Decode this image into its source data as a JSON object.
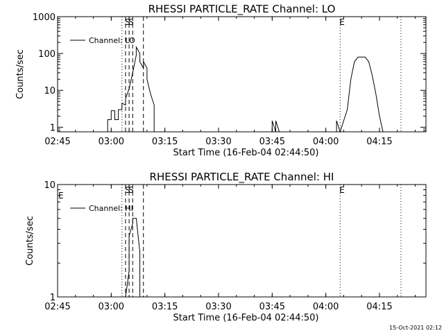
{
  "footer": {
    "timestamp": "15-Oct-2021 02:12"
  },
  "chart_data": [
    {
      "type": "line",
      "title": "RHESSI PARTICLE_RATE Channel: LO",
      "xlabel": "Start Time (16-Feb-04 02:44:50)",
      "ylabel": "Counts/sec",
      "yscale": "log",
      "xlim": [
        "02:45",
        "04:28"
      ],
      "ylim": [
        0.75,
        1000
      ],
      "x_ticks": [
        "02:45",
        "03:00",
        "03:15",
        "03:30",
        "03:45",
        "04:00",
        "04:15"
      ],
      "y_ticks": [
        {
          "value": 1,
          "label": "1"
        },
        {
          "value": 10,
          "label": "10"
        },
        {
          "value": 100,
          "label": "100"
        },
        {
          "value": 1000,
          "label": "1000"
        }
      ],
      "legend": {
        "label": "Channel: LO",
        "position": "top-left"
      },
      "vlines": [
        {
          "x": "03:03",
          "style": "dotted",
          "label": ""
        },
        {
          "x": "03:04",
          "style": "dashed",
          "label": "S"
        },
        {
          "x": "03:05",
          "style": "dashed",
          "label": "S"
        },
        {
          "x": "03:06",
          "style": "dashed",
          "label": ""
        },
        {
          "x": "03:09",
          "style": "dashed",
          "label": ""
        },
        {
          "x": "04:04",
          "style": "dotted",
          "label": "E"
        },
        {
          "x": "04:21",
          "style": "dotted",
          "label": ""
        }
      ],
      "series": [
        {
          "name": "",
          "segments": [
            [
              [
                "02:59",
                0.75
              ],
              [
                "02:59",
                1.6
              ],
              [
                "03:00",
                1.6
              ],
              [
                "03:00",
                2.8
              ],
              [
                "03:01",
                2.8
              ],
              [
                "03:01",
                1.6
              ],
              [
                "03:02",
                1.6
              ],
              [
                "03:02",
                3.0
              ],
              [
                "03:03",
                3.0
              ],
              [
                "03:03",
                4.5
              ],
              [
                "03:04",
                4.0
              ],
              [
                "03:04",
                6.0
              ],
              [
                "03:05",
                11
              ],
              [
                "03:06",
                30
              ],
              [
                "03:07",
                90
              ],
              [
                "03:07",
                150
              ],
              [
                "03:08",
                100
              ],
              [
                "03:08",
                60
              ],
              [
                "03:09",
                40
              ],
              [
                "03:09",
                60
              ],
              [
                "03:10",
                40
              ],
              [
                "03:10",
                20
              ],
              [
                "03:11",
                8
              ],
              [
                "03:12",
                4
              ],
              [
                "03:12",
                0.75
              ]
            ],
            [
              [
                "03:45",
                0.75
              ],
              [
                "03:45",
                1.5
              ],
              [
                "03:46",
                0.75
              ],
              [
                "03:46",
                1.5
              ],
              [
                "03:47",
                0.75
              ]
            ],
            [
              [
                "04:03",
                0.75
              ],
              [
                "04:03",
                1.5
              ],
              [
                "04:04",
                0.75
              ],
              [
                "04:05",
                1.5
              ],
              [
                "04:06",
                3
              ],
              [
                "04:07",
                20
              ],
              [
                "04:08",
                60
              ],
              [
                "04:09",
                80
              ],
              [
                "04:10",
                80
              ],
              [
                "04:11",
                80
              ],
              [
                "04:12",
                60
              ],
              [
                "04:13",
                25
              ],
              [
                "04:14",
                8
              ],
              [
                "04:15",
                2
              ],
              [
                "04:16",
                0.75
              ]
            ]
          ]
        }
      ]
    },
    {
      "type": "line",
      "title": "RHESSI PARTICLE_RATE Channel: HI",
      "xlabel": "Start Time (16-Feb-04 02:44:50)",
      "ylabel": "Counts/sec",
      "yscale": "log",
      "xlim": [
        "02:45",
        "04:28"
      ],
      "ylim": [
        1,
        10
      ],
      "x_ticks": [
        "02:45",
        "03:00",
        "03:15",
        "03:30",
        "03:45",
        "04:00",
        "04:15"
      ],
      "y_ticks": [
        {
          "value": 1,
          "label": "1"
        },
        {
          "value": 10,
          "label": "10"
        }
      ],
      "legend": {
        "label": "Channel: HI",
        "position": "top-left"
      },
      "vlines": [
        {
          "x": "03:03",
          "style": "dotted",
          "label": ""
        },
        {
          "x": "03:04",
          "style": "dashed",
          "label": "S"
        },
        {
          "x": "03:05",
          "style": "dashed",
          "label": "S"
        },
        {
          "x": "03:06",
          "style": "dashed",
          "label": ""
        },
        {
          "x": "03:09",
          "style": "dashed",
          "label": ""
        },
        {
          "x": "04:04",
          "style": "dotted",
          "label": "E"
        },
        {
          "x": "04:21",
          "style": "dotted",
          "label": ""
        }
      ],
      "corner_marks": [
        {
          "x": "02:45",
          "label": "E"
        }
      ],
      "series": [
        {
          "name": "",
          "segments": [
            [
              [
                "03:04",
                1
              ],
              [
                "03:05",
                1.7
              ],
              [
                "03:05",
                3.5
              ],
              [
                "03:06",
                4.5
              ],
              [
                "03:06",
                5
              ],
              [
                "03:07",
                5
              ],
              [
                "03:08",
                2.5
              ],
              [
                "03:08",
                1
              ]
            ]
          ]
        }
      ]
    }
  ]
}
